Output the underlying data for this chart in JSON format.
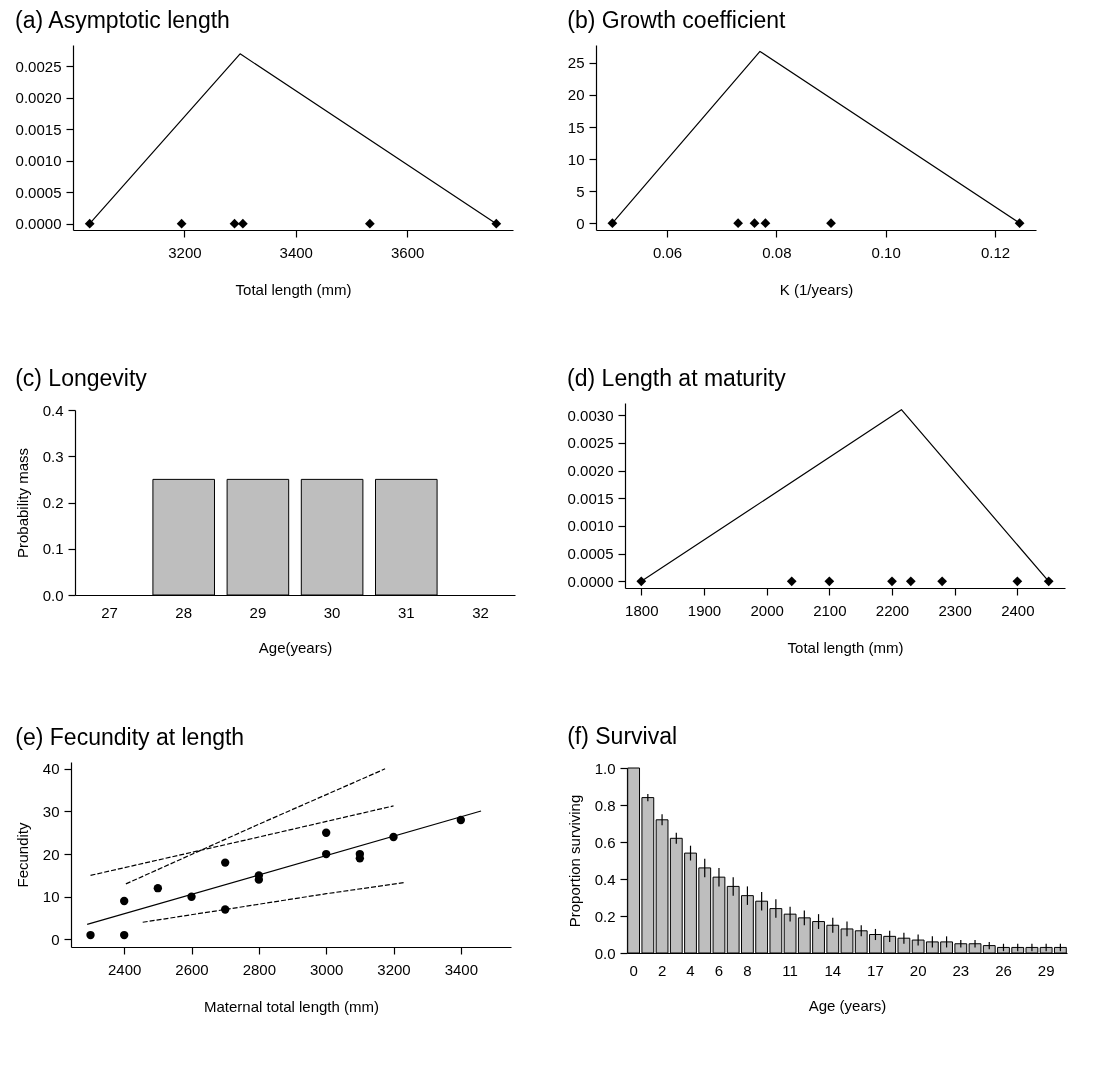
{
  "chart_data": [
    {
      "type": "line",
      "title": "(a) Asymptotic length",
      "xlabel": "Total length (mm)",
      "xlim": [
        3000,
        3790
      ],
      "xticks": [
        3200,
        3400,
        3600
      ],
      "ylim": [
        -0.0001,
        0.00284
      ],
      "yticks": [
        {
          "value": 0,
          "label": "0.0000"
        },
        {
          "value": 0.0005,
          "label": "0.0005"
        },
        {
          "value": 0.001,
          "label": "0.0010"
        },
        {
          "value": 0.0015,
          "label": "0.0015"
        },
        {
          "value": 0.002,
          "label": "0.0020"
        },
        {
          "value": 0.0025,
          "label": "0.0025"
        }
      ],
      "series": [
        {
          "type": "line",
          "color": "#000000",
          "x": [
            3030,
            3300,
            3760
          ],
          "values": [
            0,
            0.0027,
            0
          ]
        },
        {
          "type": "scatter",
          "color": "#000000",
          "marker": "diamond",
          "x": [
            3030,
            3195,
            3290,
            3305,
            3533,
            3760
          ],
          "values": [
            0,
            0,
            0,
            0,
            0,
            0
          ]
        }
      ]
    },
    {
      "type": "line",
      "title": "(b) Growth coefficient",
      "xlabel": "K (1/years)",
      "xlim": [
        0.047,
        0.1275
      ],
      "xticks": [
        0.06,
        0.08,
        {
          "value": 0.1,
          "label": "0.10"
        },
        0.12
      ],
      "ylim": [
        -1.07,
        27.8
      ],
      "yticks": [
        0,
        5,
        10,
        15,
        20,
        25
      ],
      "series": [
        {
          "type": "line",
          "color": "#000000",
          "x": [
            0.05,
            0.077,
            0.1245
          ],
          "values": [
            0,
            26.8,
            0
          ]
        },
        {
          "type": "scatter",
          "color": "#000000",
          "marker": "diamond",
          "x": [
            0.05,
            0.073,
            0.076,
            0.078,
            0.09,
            0.1245
          ],
          "values": [
            0,
            0,
            0,
            0,
            0,
            0
          ]
        }
      ]
    },
    {
      "type": "bar",
      "title": "(c) Longevity",
      "xlabel": "Age(years)",
      "ylabel": "Probability mass",
      "categories": [
        "27",
        "28",
        "29",
        "30",
        "31",
        "32"
      ],
      "values": [
        null,
        0.25,
        0.25,
        0.25,
        0.25,
        null
      ],
      "color": "#bebebe",
      "ylim": [
        0,
        0.4
      ],
      "yticks": [
        {
          "value": 0,
          "label": "0.0"
        },
        0.1,
        0.2,
        0.3,
        0.4
      ]
    },
    {
      "type": "line",
      "title": "(d) Length at maturity",
      "xlabel": "Total length (mm)",
      "xlim": [
        1774,
        2476
      ],
      "xticks": [
        1800,
        1900,
        2000,
        2100,
        2200,
        2300,
        2400
      ],
      "ylim": [
        -0.00012,
        0.00322
      ],
      "yticks": [
        {
          "value": 0,
          "label": "0.0000"
        },
        {
          "value": 0.0005,
          "label": "0.0005"
        },
        {
          "value": 0.001,
          "label": "0.0010"
        },
        {
          "value": 0.0015,
          "label": "0.0015"
        },
        {
          "value": 0.002,
          "label": "0.0020"
        },
        {
          "value": 0.0025,
          "label": "0.0025"
        },
        {
          "value": 0.003,
          "label": "0.0030"
        }
      ],
      "series": [
        {
          "type": "line",
          "color": "#000000",
          "x": [
            1800,
            2215,
            2450
          ],
          "values": [
            0,
            0.0031,
            0
          ]
        },
        {
          "type": "scatter",
          "color": "#000000",
          "marker": "diamond",
          "x": [
            1800,
            2040,
            2100,
            2200,
            2230,
            2280,
            2400,
            2450
          ],
          "values": [
            0,
            0,
            0,
            0,
            0,
            0,
            0,
            0
          ]
        }
      ]
    },
    {
      "type": "line",
      "title": "(e) Fecundity at length",
      "xlabel": "Maternal total length (mm)",
      "ylabel": "Fecundity",
      "xlim": [
        2242,
        3549
      ],
      "xticks": [
        2400,
        2600,
        2800,
        3000,
        3200,
        3400
      ],
      "ylim": [
        -1.8,
        41.6
      ],
      "yticks": [
        0,
        10,
        20,
        30,
        40
      ],
      "series": [
        {
          "type": "scatter",
          "color": "#000000",
          "marker": "circle",
          "x": [
            2300,
            2400,
            2400,
            2500,
            2600,
            2700,
            2700,
            2800,
            2800,
            3000,
            3000,
            3100,
            3100,
            3200,
            3400
          ],
          "values": [
            1,
            1,
            9,
            12,
            10,
            18,
            7,
            15,
            14,
            25,
            20,
            20,
            19,
            24,
            28
          ]
        },
        {
          "type": "line",
          "color": "#000000",
          "x": [
            2290,
            3460
          ],
          "values": [
            3.5,
            30.1
          ]
        },
        {
          "type": "line",
          "color": "#000000",
          "line_style": "dashed",
          "x": [
            2300,
            2800,
            3200
          ],
          "values": [
            15,
            24,
            31.3
          ]
        },
        {
          "type": "line",
          "color": "#000000",
          "line_style": "dashed",
          "x": [
            2405,
            2800,
            3175
          ],
          "values": [
            13,
            27,
            40
          ]
        },
        {
          "type": "line",
          "color": "#000000",
          "line_style": "dashed",
          "x": [
            2455,
            2700,
            3000,
            3230
          ],
          "values": [
            4,
            7,
            10.7,
            13.3
          ]
        }
      ]
    },
    {
      "type": "bar",
      "title": "(f) Survival",
      "xlabel": "Age (years)",
      "ylabel": "Proportion surviving",
      "categories": [
        "0",
        null,
        "2",
        null,
        "4",
        null,
        "6",
        null,
        "8",
        null,
        null,
        "11",
        null,
        null,
        "14",
        null,
        null,
        "17",
        null,
        null,
        "20",
        null,
        null,
        "23",
        null,
        null,
        "26",
        null,
        null,
        "29",
        null
      ],
      "values": [
        1.0,
        0.84,
        0.72,
        0.62,
        0.54,
        0.46,
        0.41,
        0.36,
        0.31,
        0.28,
        0.24,
        0.21,
        0.19,
        0.17,
        0.15,
        0.13,
        0.12,
        0.1,
        0.09,
        0.08,
        0.07,
        0.06,
        0.06,
        0.05,
        0.05,
        0.04,
        0.03,
        0.03,
        0.03,
        0.03,
        0.03
      ],
      "errors": [
        null,
        0.02,
        0.03,
        0.03,
        0.04,
        0.05,
        0.05,
        0.05,
        0.05,
        0.05,
        0.05,
        0.04,
        0.04,
        0.04,
        0.04,
        0.04,
        0.03,
        0.03,
        0.03,
        0.03,
        0.03,
        0.03,
        0.03,
        0.02,
        0.02,
        0.02,
        0.02,
        0.02,
        0.02,
        0.02,
        0.02
      ],
      "color": "#bebebe",
      "ylim": [
        0,
        1
      ],
      "yticks": [
        {
          "value": 0,
          "label": "0.0"
        },
        0.2,
        0.4,
        0.6,
        0.8,
        {
          "value": 1,
          "label": "1.0"
        }
      ]
    }
  ]
}
